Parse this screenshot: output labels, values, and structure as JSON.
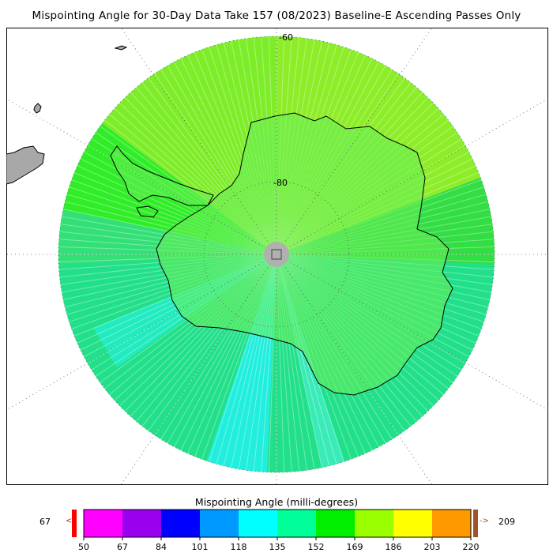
{
  "title": "Mispointing Angle for 30-Day Data Take 157 (08/2023) Baseline-E Ascending Passes Only",
  "map": {
    "projection": "south-polar-stereographic",
    "latitude_labels": [
      "-60",
      "-80"
    ],
    "pole_hole_color": "#b0b0b0",
    "land_color": "#a8a8a8",
    "coastline_color": "#000000",
    "dominant_value_regions": [
      {
        "region": "outer swath ring",
        "range": "152-186"
      },
      {
        "region": "East Antarctica interior",
        "range": "152-169"
      },
      {
        "region": "near pole",
        "range": "118-152"
      }
    ]
  },
  "colorbar": {
    "title": "Mispointing Angle (milli-degrees)",
    "min_value": "67",
    "max_value": "209",
    "left_arrow": "<",
    "right_arrow": "->",
    "under_color": "#ff0000",
    "over_color": "#a0522d",
    "ticks": [
      "50",
      "67",
      "84",
      "101",
      "118",
      "135",
      "152",
      "169",
      "186",
      "203",
      "220"
    ],
    "colors": [
      "#ff00ff",
      "#9900ee",
      "#0000ff",
      "#0099ff",
      "#00ffff",
      "#00ff99",
      "#00ee00",
      "#99ff00",
      "#ffff00",
      "#ff9900"
    ]
  }
}
